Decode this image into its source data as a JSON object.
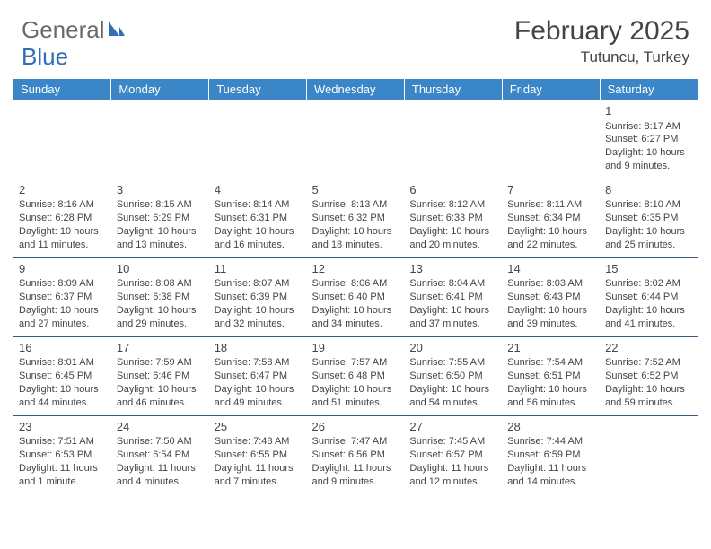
{
  "logo": {
    "text1": "General",
    "text2": "Blue"
  },
  "title": {
    "month": "February 2025",
    "location": "Tutuncu, Turkey"
  },
  "colors": {
    "header_bg": "#3b86c7",
    "header_text": "#ffffff",
    "cell_border": "#3b5a78",
    "body_text": "#444444",
    "logo_gray": "#6b6b6b",
    "logo_blue": "#2e6fb5",
    "page_bg": "#ffffff"
  },
  "fonts": {
    "family": "Arial",
    "title_size_pt": 22,
    "location_size_pt": 13,
    "dayhead_size_pt": 10,
    "cell_size_pt": 8
  },
  "day_headers": [
    "Sunday",
    "Monday",
    "Tuesday",
    "Wednesday",
    "Thursday",
    "Friday",
    "Saturday"
  ],
  "weeks": [
    [
      null,
      null,
      null,
      null,
      null,
      null,
      {
        "n": "1",
        "sr": "Sunrise: 8:17 AM",
        "ss": "Sunset: 6:27 PM",
        "dl": "Daylight: 10 hours and 9 minutes."
      }
    ],
    [
      {
        "n": "2",
        "sr": "Sunrise: 8:16 AM",
        "ss": "Sunset: 6:28 PM",
        "dl": "Daylight: 10 hours and 11 minutes."
      },
      {
        "n": "3",
        "sr": "Sunrise: 8:15 AM",
        "ss": "Sunset: 6:29 PM",
        "dl": "Daylight: 10 hours and 13 minutes."
      },
      {
        "n": "4",
        "sr": "Sunrise: 8:14 AM",
        "ss": "Sunset: 6:31 PM",
        "dl": "Daylight: 10 hours and 16 minutes."
      },
      {
        "n": "5",
        "sr": "Sunrise: 8:13 AM",
        "ss": "Sunset: 6:32 PM",
        "dl": "Daylight: 10 hours and 18 minutes."
      },
      {
        "n": "6",
        "sr": "Sunrise: 8:12 AM",
        "ss": "Sunset: 6:33 PM",
        "dl": "Daylight: 10 hours and 20 minutes."
      },
      {
        "n": "7",
        "sr": "Sunrise: 8:11 AM",
        "ss": "Sunset: 6:34 PM",
        "dl": "Daylight: 10 hours and 22 minutes."
      },
      {
        "n": "8",
        "sr": "Sunrise: 8:10 AM",
        "ss": "Sunset: 6:35 PM",
        "dl": "Daylight: 10 hours and 25 minutes."
      }
    ],
    [
      {
        "n": "9",
        "sr": "Sunrise: 8:09 AM",
        "ss": "Sunset: 6:37 PM",
        "dl": "Daylight: 10 hours and 27 minutes."
      },
      {
        "n": "10",
        "sr": "Sunrise: 8:08 AM",
        "ss": "Sunset: 6:38 PM",
        "dl": "Daylight: 10 hours and 29 minutes."
      },
      {
        "n": "11",
        "sr": "Sunrise: 8:07 AM",
        "ss": "Sunset: 6:39 PM",
        "dl": "Daylight: 10 hours and 32 minutes."
      },
      {
        "n": "12",
        "sr": "Sunrise: 8:06 AM",
        "ss": "Sunset: 6:40 PM",
        "dl": "Daylight: 10 hours and 34 minutes."
      },
      {
        "n": "13",
        "sr": "Sunrise: 8:04 AM",
        "ss": "Sunset: 6:41 PM",
        "dl": "Daylight: 10 hours and 37 minutes."
      },
      {
        "n": "14",
        "sr": "Sunrise: 8:03 AM",
        "ss": "Sunset: 6:43 PM",
        "dl": "Daylight: 10 hours and 39 minutes."
      },
      {
        "n": "15",
        "sr": "Sunrise: 8:02 AM",
        "ss": "Sunset: 6:44 PM",
        "dl": "Daylight: 10 hours and 41 minutes."
      }
    ],
    [
      {
        "n": "16",
        "sr": "Sunrise: 8:01 AM",
        "ss": "Sunset: 6:45 PM",
        "dl": "Daylight: 10 hours and 44 minutes."
      },
      {
        "n": "17",
        "sr": "Sunrise: 7:59 AM",
        "ss": "Sunset: 6:46 PM",
        "dl": "Daylight: 10 hours and 46 minutes."
      },
      {
        "n": "18",
        "sr": "Sunrise: 7:58 AM",
        "ss": "Sunset: 6:47 PM",
        "dl": "Daylight: 10 hours and 49 minutes."
      },
      {
        "n": "19",
        "sr": "Sunrise: 7:57 AM",
        "ss": "Sunset: 6:48 PM",
        "dl": "Daylight: 10 hours and 51 minutes."
      },
      {
        "n": "20",
        "sr": "Sunrise: 7:55 AM",
        "ss": "Sunset: 6:50 PM",
        "dl": "Daylight: 10 hours and 54 minutes."
      },
      {
        "n": "21",
        "sr": "Sunrise: 7:54 AM",
        "ss": "Sunset: 6:51 PM",
        "dl": "Daylight: 10 hours and 56 minutes."
      },
      {
        "n": "22",
        "sr": "Sunrise: 7:52 AM",
        "ss": "Sunset: 6:52 PM",
        "dl": "Daylight: 10 hours and 59 minutes."
      }
    ],
    [
      {
        "n": "23",
        "sr": "Sunrise: 7:51 AM",
        "ss": "Sunset: 6:53 PM",
        "dl": "Daylight: 11 hours and 1 minute."
      },
      {
        "n": "24",
        "sr": "Sunrise: 7:50 AM",
        "ss": "Sunset: 6:54 PM",
        "dl": "Daylight: 11 hours and 4 minutes."
      },
      {
        "n": "25",
        "sr": "Sunrise: 7:48 AM",
        "ss": "Sunset: 6:55 PM",
        "dl": "Daylight: 11 hours and 7 minutes."
      },
      {
        "n": "26",
        "sr": "Sunrise: 7:47 AM",
        "ss": "Sunset: 6:56 PM",
        "dl": "Daylight: 11 hours and 9 minutes."
      },
      {
        "n": "27",
        "sr": "Sunrise: 7:45 AM",
        "ss": "Sunset: 6:57 PM",
        "dl": "Daylight: 11 hours and 12 minutes."
      },
      {
        "n": "28",
        "sr": "Sunrise: 7:44 AM",
        "ss": "Sunset: 6:59 PM",
        "dl": "Daylight: 11 hours and 14 minutes."
      },
      null
    ]
  ]
}
